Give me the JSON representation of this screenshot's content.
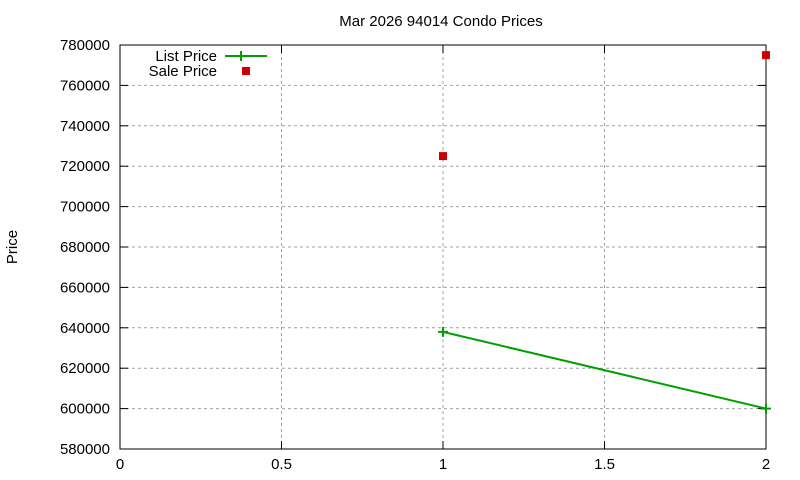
{
  "chart_data": {
    "type": "line",
    "title": "Mar 2026 94014 Condo Prices",
    "xlabel": "",
    "ylabel": "Price",
    "xlim": [
      0,
      2
    ],
    "ylim": [
      580000,
      780000
    ],
    "x_ticks": [
      "0",
      "0.5",
      "1",
      "1.5",
      "2"
    ],
    "y_ticks": [
      "580000",
      "600000",
      "620000",
      "640000",
      "660000",
      "680000",
      "700000",
      "720000",
      "740000",
      "760000",
      "780000"
    ],
    "grid": true,
    "legend_position": "top-left",
    "series": [
      {
        "name": "List Price",
        "style": "linespoints",
        "marker": "plus",
        "color": "#00a000",
        "x": [
          1,
          2
        ],
        "values": [
          638000,
          600000
        ]
      },
      {
        "name": "Sale Price",
        "style": "points",
        "marker": "square",
        "color": "#cc0000",
        "x": [
          1,
          2
        ],
        "values": [
          725000,
          775000
        ]
      }
    ]
  }
}
